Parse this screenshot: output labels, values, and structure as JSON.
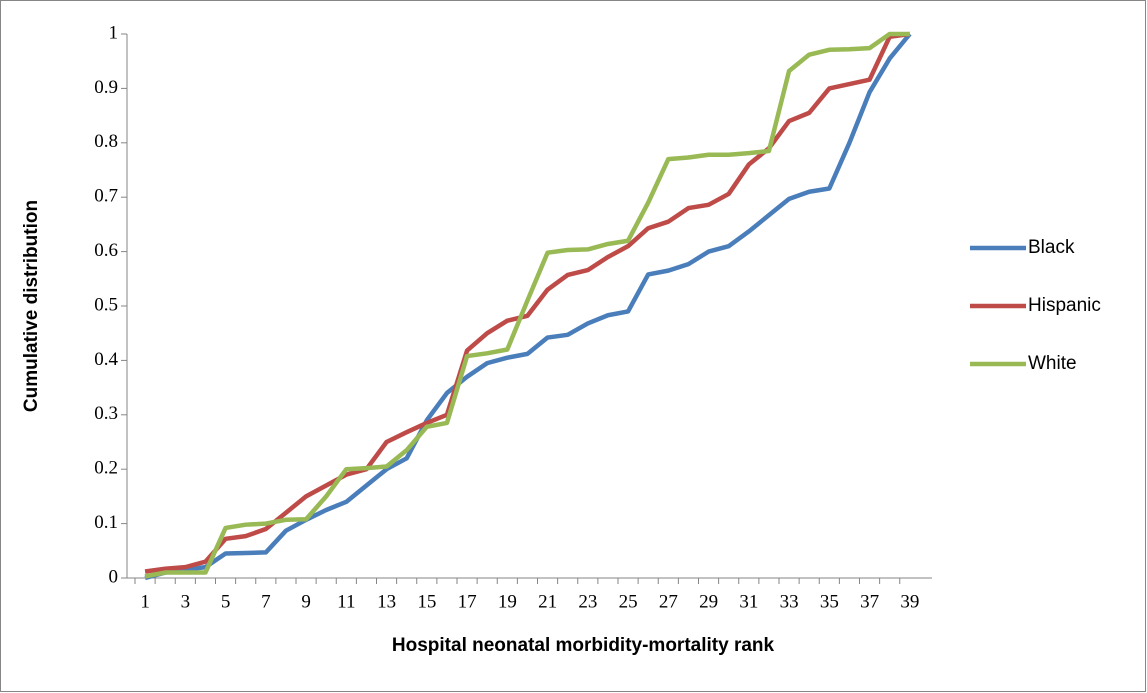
{
  "chart_data": {
    "type": "line",
    "ylabel": "Cumulative distribution",
    "xlabel": "Hospital neonatal morbidity-mortality rank",
    "categories": [
      1,
      null,
      3,
      null,
      5,
      null,
      7,
      null,
      9,
      null,
      11,
      null,
      13,
      null,
      15,
      null,
      17,
      null,
      19,
      null,
      21,
      null,
      23,
      null,
      25,
      null,
      27,
      null,
      29,
      null,
      31,
      null,
      33,
      null,
      35,
      null,
      37,
      null,
      39
    ],
    "series": [
      {
        "name": "Black",
        "color": "#4a7ebb",
        "values": [
          0.0,
          0.01,
          0.015,
          0.02,
          0.045,
          0.046,
          0.047,
          0.087,
          0.107,
          0.125,
          0.14,
          0.17,
          0.2,
          0.22,
          0.29,
          0.34,
          0.37,
          0.395,
          0.405,
          0.412,
          0.442,
          0.447,
          0.468,
          0.483,
          0.49,
          0.558,
          0.565,
          0.577,
          0.6,
          0.61,
          0.637,
          0.667,
          0.697,
          0.71,
          0.716,
          0.8,
          0.893,
          0.955,
          1.0
        ]
      },
      {
        "name": "Hispanic",
        "color": "#be4b48",
        "values": [
          0.012,
          0.017,
          0.02,
          0.03,
          0.072,
          0.077,
          0.09,
          0.12,
          0.15,
          0.17,
          0.19,
          0.2,
          0.25,
          0.268,
          0.285,
          0.3,
          0.418,
          0.45,
          0.473,
          0.482,
          0.53,
          0.557,
          0.566,
          0.59,
          0.61,
          0.643,
          0.655,
          0.68,
          0.686,
          0.706,
          0.76,
          0.79,
          0.84,
          0.855,
          0.9,
          0.908,
          0.916,
          0.995,
          1.0
        ]
      },
      {
        "name": "White",
        "color": "#98b954",
        "values": [
          0.003,
          0.01,
          0.01,
          0.01,
          0.092,
          0.098,
          0.1,
          0.107,
          0.108,
          0.15,
          0.2,
          0.202,
          0.205,
          0.235,
          0.278,
          0.285,
          0.408,
          0.413,
          0.42,
          0.51,
          0.598,
          0.603,
          0.604,
          0.614,
          0.62,
          0.69,
          0.77,
          0.773,
          0.778,
          0.778,
          0.781,
          0.785,
          0.932,
          0.962,
          0.971,
          0.972,
          0.974,
          1.0,
          1.0
        ]
      }
    ],
    "ylim": [
      0,
      1
    ],
    "yticks": [
      0,
      0.1,
      0.2,
      0.3,
      0.4,
      0.5,
      0.6,
      0.7,
      0.8,
      0.9,
      1
    ],
    "legend": "right",
    "grid": false
  }
}
